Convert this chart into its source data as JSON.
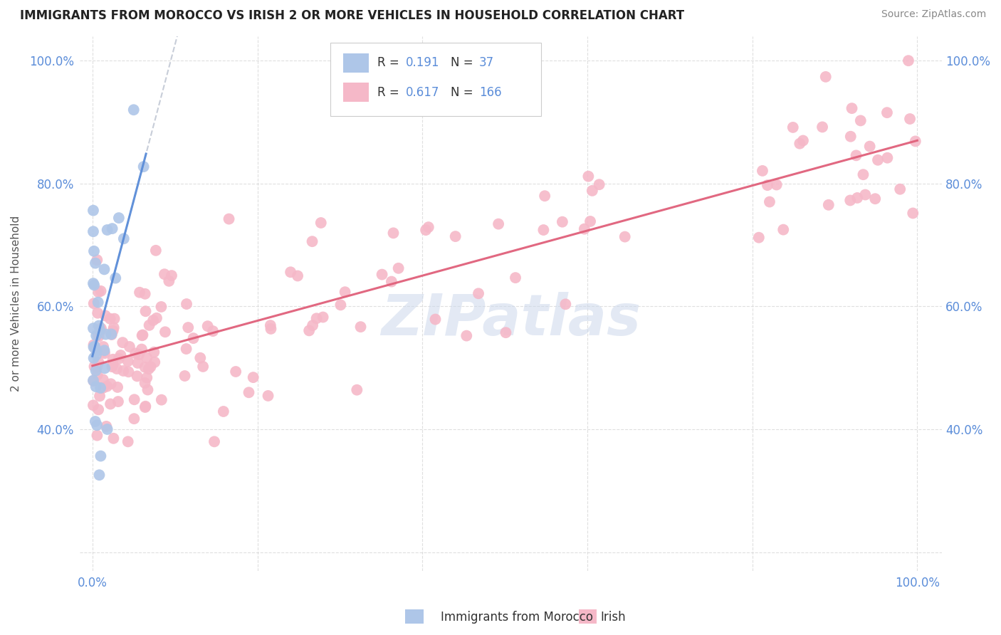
{
  "title": "IMMIGRANTS FROM MOROCCO VS IRISH 2 OR MORE VEHICLES IN HOUSEHOLD CORRELATION CHART",
  "source": "Source: ZipAtlas.com",
  "ylabel": "2 or more Vehicles in Household",
  "morocco_color": "#aec6e8",
  "irish_color": "#f5b8c8",
  "morocco_line_color": "#5b8dd9",
  "irish_line_color": "#e0607a",
  "dashed_line_color": "#b0b8c8",
  "morocco_R": "0.191",
  "morocco_N": "37",
  "irish_R": "0.617",
  "irish_N": "166",
  "watermark": "ZIPatlas",
  "watermark_color": "#ccd8eb",
  "background_color": "#ffffff",
  "grid_color": "#d8d8d8",
  "tick_color": "#5b8dd9",
  "title_color": "#222222",
  "source_color": "#888888",
  "ylabel_color": "#555555",
  "legend_edge_color": "#cccccc",
  "label_color": "#333333"
}
